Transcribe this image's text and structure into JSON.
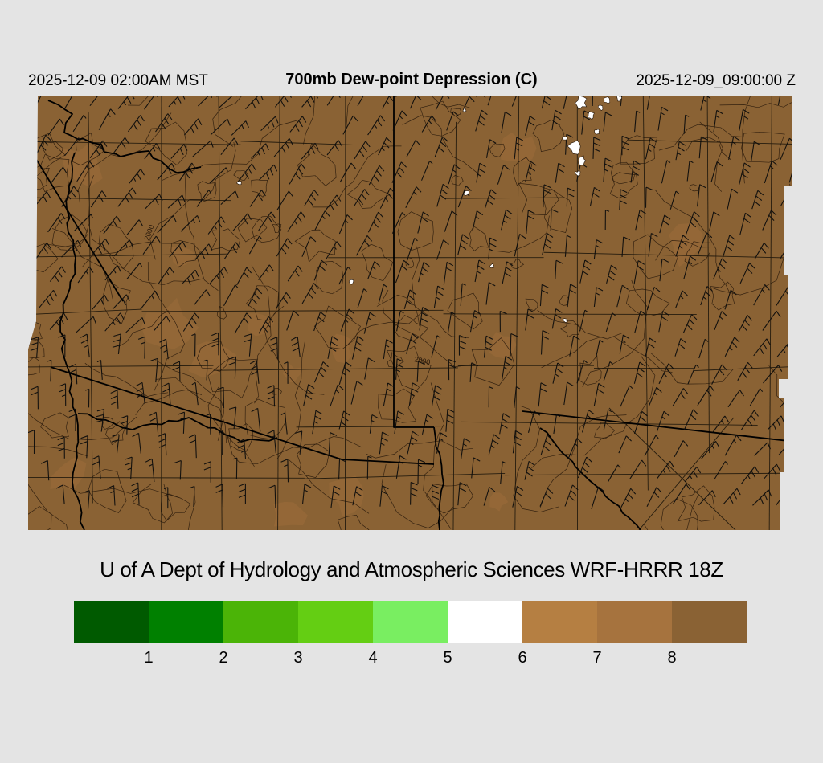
{
  "header": {
    "left_timestamp": "2025-12-09 02:00AM MST",
    "title": "700mb Dew-point Depression (C)",
    "right_timestamp": "2025-12-09_09:00:00 Z"
  },
  "caption": "U of A Dept of Hydrology and Atmospheric Sciences WRF-HRRR 18Z",
  "map": {
    "contour_label": "2000",
    "colors": {
      "background": "#e4e4e4",
      "fill": "#8a6234",
      "fill_light_patch": "#a6733e",
      "terrain_contour": "#26170a",
      "county_line": "#141008",
      "boundary": "#000000",
      "river": "#000000",
      "wind_barb": "#0d0d0d",
      "missing_patch": "#ffffff"
    }
  },
  "colorbar": {
    "units": "C",
    "tick_labels": [
      "1",
      "2",
      "3",
      "4",
      "5",
      "6",
      "7",
      "8"
    ],
    "segment_colors": [
      "#005a00",
      "#008000",
      "#4bb407",
      "#64ce13",
      "#79ee61",
      "#ffffff",
      "#b57f42",
      "#a6733e",
      "#8a6234"
    ]
  },
  "chart_data": {
    "type": "heatmap",
    "title": "700mb Dew-point Depression (C)",
    "legend_values": [
      1,
      2,
      3,
      4,
      5,
      6,
      7,
      8
    ],
    "legend_colors": [
      "#005a00",
      "#008000",
      "#4bb407",
      "#64ce13",
      "#79ee61",
      "#ffffff",
      "#b57f42",
      "#a6733e",
      "#8a6234"
    ],
    "field_summary": "nearly entire domain at dew-point depression > 8 C (dark brown); small white patches (5-6 C) in north-central area"
  }
}
